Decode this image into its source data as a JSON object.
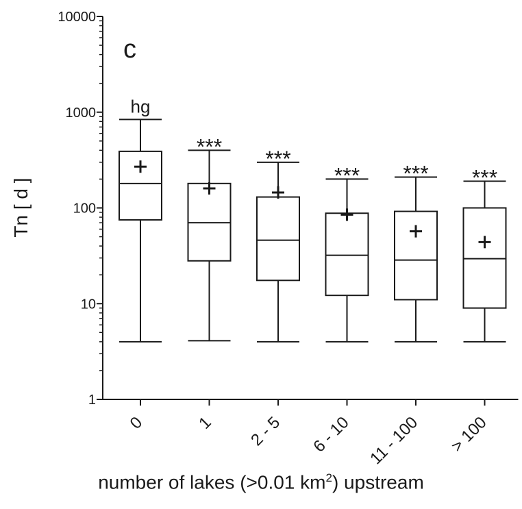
{
  "chart_data": {
    "type": "box",
    "panel_label": "c",
    "y_scale": "log",
    "ylim": [
      1,
      10000
    ],
    "y_ticks": [
      1,
      10,
      100,
      1000,
      10000
    ],
    "y_tick_labels": [
      "1",
      "10",
      "100",
      "1000",
      "10000"
    ],
    "ylabel": "Tn [ d ]",
    "xlabel": {
      "prefix": "number of lakes (>0.01 km",
      "sup": "2",
      "suffix": ") upstream"
    },
    "categories": [
      "0",
      "1",
      "2 - 5",
      "6 - 10",
      "11 - 100",
      "> 100"
    ],
    "boxes": [
      {
        "category": "0",
        "whisker_low": 4,
        "q1": 75,
        "median": 180,
        "q3": 390,
        "whisker_high": 840,
        "mean": 270,
        "annotation": "hg"
      },
      {
        "category": "1",
        "whisker_low": 4.1,
        "q1": 28,
        "median": 70,
        "q3": 180,
        "whisker_high": 400,
        "mean": 160,
        "annotation": "***"
      },
      {
        "category": "2 - 5",
        "whisker_low": 4,
        "q1": 17.5,
        "median": 46,
        "q3": 130,
        "whisker_high": 300,
        "mean": 145,
        "annotation": "***"
      },
      {
        "category": "6 - 10",
        "whisker_low": 4,
        "q1": 12.2,
        "median": 32,
        "q3": 88,
        "whisker_high": 200,
        "mean": 85,
        "annotation": "***"
      },
      {
        "category": "11 - 100",
        "whisker_low": 4,
        "q1": 11,
        "median": 28.5,
        "q3": 92,
        "whisker_high": 210,
        "mean": 57,
        "annotation": "***"
      },
      {
        "category": "> 100",
        "whisker_low": 4,
        "q1": 9,
        "median": 29.5,
        "q3": 100,
        "whisker_high": 190,
        "mean": 44,
        "annotation": "***"
      }
    ],
    "grid": false,
    "line_color": "#1a1a1a"
  }
}
